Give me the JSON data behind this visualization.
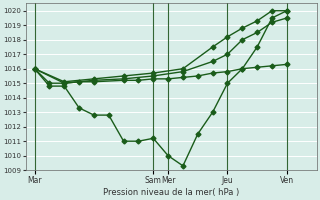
{
  "xlabel": "Pression niveau de la mer( hPa )",
  "bg_color": "#d8ede8",
  "grid_color": "#ffffff",
  "line_color": "#1a5c1a",
  "ylim": [
    1009,
    1020.5
  ],
  "yticks": [
    1009,
    1010,
    1011,
    1012,
    1013,
    1014,
    1015,
    1016,
    1017,
    1018,
    1019,
    1020
  ],
  "xtick_labels": [
    "Mar",
    "Sam",
    "Mer",
    "Jeu",
    "Ven"
  ],
  "xtick_positions": [
    0,
    4.0,
    4.5,
    6.5,
    8.5
  ],
  "xlim": [
    -0.3,
    9.2
  ],
  "vlines_x": [
    0,
    4.0,
    4.5,
    6.5,
    8.5
  ],
  "line1_x": [
    0,
    0.5,
    1.0,
    1.5,
    2.0,
    2.5,
    3.0,
    3.5,
    4.0,
    4.5,
    5.0,
    5.5,
    6.0,
    6.5,
    7.0,
    7.5,
    8.0,
    8.5
  ],
  "line1_y": [
    1016.0,
    1014.8,
    1014.8,
    1013.3,
    1012.8,
    1012.8,
    1011.0,
    1011.0,
    1011.2,
    1010.0,
    1009.3,
    1011.5,
    1013.0,
    1015.0,
    1016.0,
    1017.5,
    1019.5,
    1020.0
  ],
  "line2_x": [
    0,
    0.5,
    1.0,
    1.5,
    2.0,
    3.0,
    3.5,
    4.0,
    4.5,
    5.0,
    5.5,
    6.0,
    6.5,
    7.0,
    7.5,
    8.0,
    8.5
  ],
  "line2_y": [
    1016.0,
    1015.0,
    1015.0,
    1015.1,
    1015.1,
    1015.2,
    1015.2,
    1015.3,
    1015.3,
    1015.4,
    1015.5,
    1015.7,
    1015.8,
    1016.0,
    1016.1,
    1016.2,
    1016.3
  ],
  "line3_x": [
    0,
    1.0,
    2.0,
    3.0,
    4.0,
    5.0,
    6.0,
    6.5,
    7.0,
    7.5,
    8.0,
    8.5
  ],
  "line3_y": [
    1016.0,
    1015.0,
    1015.2,
    1015.3,
    1015.5,
    1015.8,
    1016.5,
    1017.0,
    1018.0,
    1018.5,
    1019.2,
    1019.5
  ],
  "line4_x": [
    0,
    1.0,
    2.0,
    3.0,
    4.0,
    5.0,
    6.0,
    6.5,
    7.0,
    7.5,
    8.0,
    8.5
  ],
  "line4_y": [
    1016.0,
    1015.1,
    1015.3,
    1015.5,
    1015.7,
    1016.0,
    1017.5,
    1018.2,
    1018.8,
    1019.3,
    1020.0,
    1020.0
  ],
  "marker_size": 2.5,
  "linewidth": 1.0
}
